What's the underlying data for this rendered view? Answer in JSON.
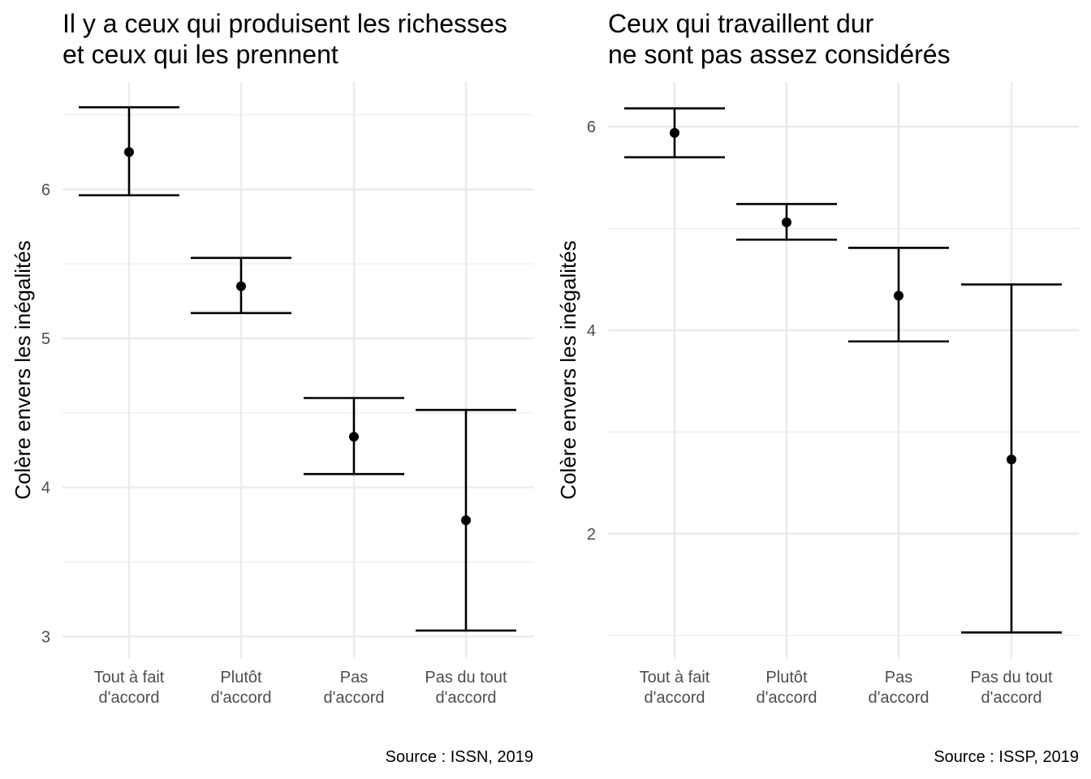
{
  "colors": {
    "grid": "#ebebeb",
    "ink": "#000000",
    "tick_text": "#4d4d4d",
    "background": "#ffffff"
  },
  "chart_data": [
    {
      "type": "errorbar",
      "title": [
        "Il y a ceux qui produisent les richesses",
        "et ceux qui les prennent"
      ],
      "xlabel": "",
      "ylabel": "Colère envers les inégalités",
      "caption": "Source : ISSN, 2019",
      "categories": [
        [
          "Tout à fait",
          "d'accord"
        ],
        [
          "Plutôt",
          "d'accord"
        ],
        [
          "Pas",
          "d'accord"
        ],
        [
          "Pas du tout",
          "d'accord"
        ]
      ],
      "mean": [
        6.25,
        5.35,
        4.34,
        3.78
      ],
      "lower": [
        5.96,
        5.17,
        4.09,
        3.04
      ],
      "upper": [
        6.55,
        5.54,
        4.6,
        4.52
      ],
      "ylim": [
        2.85,
        6.72
      ],
      "yticks": [
        3,
        4,
        5,
        6
      ],
      "minor_yticks": [
        3.5,
        4.5,
        5.5,
        6.5
      ],
      "grid": true
    },
    {
      "type": "errorbar",
      "title": [
        "Ceux qui travaillent dur",
        "ne sont pas assez considérés"
      ],
      "xlabel": "",
      "ylabel": "Colère envers les inégalités",
      "caption": "Source : ISSP, 2019",
      "categories": [
        [
          "Tout à fait",
          "d'accord"
        ],
        [
          "Plutôt",
          "d'accord"
        ],
        [
          "Pas",
          "d'accord"
        ],
        [
          "Pas du tout",
          "d'accord"
        ]
      ],
      "mean": [
        5.94,
        5.06,
        4.34,
        2.73
      ],
      "lower": [
        5.7,
        4.89,
        3.89,
        1.03
      ],
      "upper": [
        6.18,
        5.24,
        4.81,
        4.45
      ],
      "ylim": [
        0.77,
        6.44
      ],
      "yticks": [
        2,
        4,
        6
      ],
      "minor_yticks": [
        1,
        3,
        5
      ],
      "grid": true
    }
  ]
}
